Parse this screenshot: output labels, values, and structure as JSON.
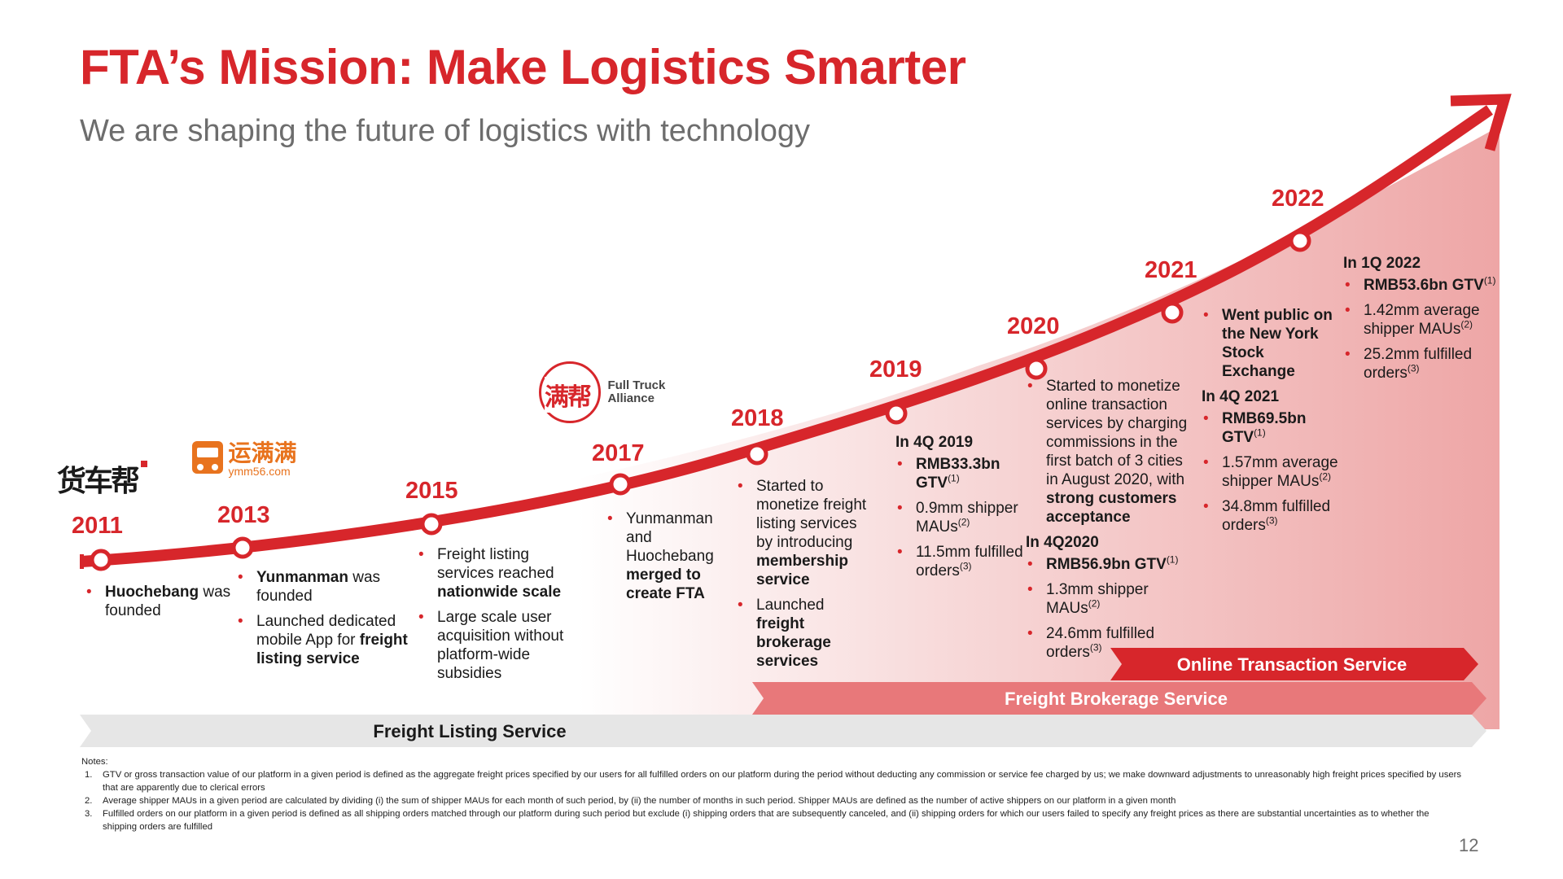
{
  "title": "FTA’s Mission: Make Logistics Smarter",
  "subtitle": "We are shaping the future of logistics with technology",
  "colors": {
    "accent": "#d7262b",
    "brokerage": "#e8787a",
    "listing": "#e6e6e6",
    "subtitle": "#6d6d6d"
  },
  "logos": {
    "huochebang": "货车帮",
    "yunmanman_cn": "运满满",
    "yunmanman_url": "ymm56.com",
    "fta_cn": "满帮",
    "fta_en_1": "Full Truck",
    "fta_en_2": "Alliance"
  },
  "timeline": {
    "y2011": {
      "year": "2011",
      "b1_bold": "Huochebang",
      "b1_text": " was founded"
    },
    "y2013": {
      "year": "2013",
      "b1_bold": "Yunmanman",
      "b1_text": " was founded",
      "b2_text": "Launched dedicated mobile App for ",
      "b2_bold": "freight listing service"
    },
    "y2015": {
      "year": "2015",
      "b1_text": "Freight listing services reached ",
      "b1_bold": "nationwide scale",
      "b2_text": "Large scale user acquisition without platform-wide subsidies"
    },
    "y2017": {
      "year": "2017",
      "b1_text": "Yunmanman and Huochebang ",
      "b1_bold": "merged to create FTA"
    },
    "y2018": {
      "year": "2018",
      "b1_text": "Started to monetize freight listing services by introducing ",
      "b1_bold": "membership service",
      "b2_text": "Launched ",
      "b2_bold": "freight brokerage services"
    },
    "y2019": {
      "year": "2019",
      "heading": "In 4Q 2019",
      "b1_bold": "RMB33.3bn GTV",
      "b1_sup": "(1)",
      "b2_text": "0.9mm shipper MAUs",
      "b2_sup": "(2)",
      "b3_text": "11.5mm fulfilled orders",
      "b3_sup": "(3)"
    },
    "y2020": {
      "year": "2020",
      "b1_text": "Started to monetize online transaction services by charging commissions in the first batch of 3 cities in August 2020, with ",
      "b1_bold": "strong customers acceptance",
      "heading": "In 4Q2020",
      "b2_bold": "RMB56.9bn GTV",
      "b2_sup": "(1)",
      "b3_text": "1.3mm shipper MAUs",
      "b3_sup": "(2)",
      "b4_text": "24.6mm fulfilled orders",
      "b4_sup": "(3)"
    },
    "y2021": {
      "year": "2021",
      "b1_bold": "Went public on the New York Stock Exchange",
      "heading": "In 4Q 2021",
      "b2_bold": "RMB69.5bn GTV",
      "b2_sup": "(1)",
      "b3_text": "1.57mm average shipper MAUs",
      "b3_sup": "(2)",
      "b4_text": "34.8mm fulfilled orders",
      "b4_sup": "(3)"
    },
    "y2022": {
      "year": "2022",
      "heading": "In 1Q 2022",
      "b1_bold": "RMB53.6bn GTV",
      "b1_sup": "(1)",
      "b2_text": "1.42mm average shipper MAUs",
      "b2_sup": "(2)",
      "b3_text": "25.2mm fulfilled orders",
      "b3_sup": "(3)"
    }
  },
  "services": {
    "online": "Online Transaction Service",
    "brokerage": "Freight Brokerage Service",
    "listing": "Freight Listing Service"
  },
  "notes": {
    "header": "Notes:",
    "n1_num": "1.",
    "n1": "GTV or gross transaction value of our platform in a given period is defined as the aggregate freight prices specified by our users for all fulfilled orders on our platform during the period without deducting any commission or service fee charged by us; we make downward adjustments to unreasonably high freight prices specified by users that are apparently due to clerical errors",
    "n2_num": "2.",
    "n2": "Average shipper MAUs in a given period are calculated by dividing (i) the sum of shipper MAUs for each month of such period, by (ii) the number of months in such period. Shipper MAUs are defined as the number of active shippers on our platform in a given month",
    "n3_num": "3.",
    "n3": "Fulfilled orders on our platform in a given period is defined as all shipping orders matched through our platform during such period but exclude (i) shipping orders that are subsequently canceled, and (ii) shipping orders for which our users failed to specify any freight prices as there are substantial uncertainties as to whether the shipping orders are fulfilled"
  },
  "page_number": "12"
}
